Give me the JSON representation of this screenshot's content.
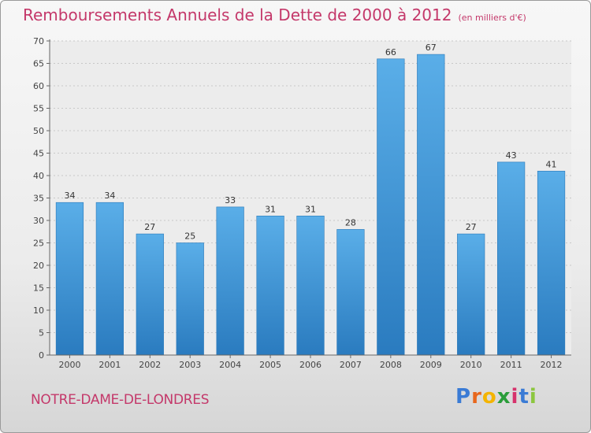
{
  "header": {
    "title": "Remboursements Annuels de la Dette de 2000 à 2012",
    "subtitle": "(en milliers d'€)"
  },
  "footer": {
    "commune": "NOTRE-DAME-DE-LONDRES",
    "logo_letters": [
      "P",
      "r",
      "o",
      "x",
      "i",
      "t",
      "i"
    ],
    "logo_colors": [
      "#3a7bd5",
      "#e8671c",
      "#f4b400",
      "#2a9d3a",
      "#d6336c",
      "#3a7bd5",
      "#8cc63f"
    ]
  },
  "chart_data": {
    "type": "bar",
    "title": "Remboursements Annuels de la Dette de 2000 à 2012",
    "categories": [
      "2000",
      "2001",
      "2002",
      "2003",
      "2004",
      "2005",
      "2006",
      "2007",
      "2008",
      "2009",
      "2010",
      "2011",
      "2012"
    ],
    "values": [
      34,
      34,
      27,
      25,
      33,
      31,
      31,
      28,
      66,
      67,
      27,
      43,
      41
    ],
    "value_labels": [
      "34",
      "34",
      "27",
      "25",
      "33",
      "31",
      "31",
      "28",
      "66",
      "67",
      "27",
      "43",
      "41"
    ],
    "ylim": [
      0,
      70
    ],
    "yticks": [
      "0",
      "5",
      "10",
      "15",
      "20",
      "25",
      "30",
      "35",
      "40",
      "45",
      "50",
      "55",
      "60",
      "65",
      "70"
    ],
    "grid": true,
    "bar_color_top": "#5aaee8",
    "bar_color_bottom": "#2a7bbf"
  }
}
